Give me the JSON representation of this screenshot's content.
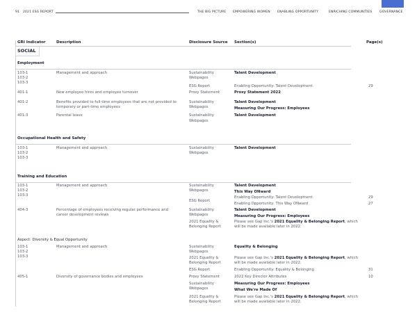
{
  "header": {
    "page_number": "91",
    "report_title": "2021 ESG REPORT",
    "nav": [
      "THE BIG PICTURE",
      "EMPOWERING WOMEN",
      "ENABLING OPPORTUNITY",
      "ENRICHING COMMUNITIES",
      "GOVERNANCE"
    ],
    "accent_color": "#4a6fd0"
  },
  "table": {
    "columns": [
      "GRI Indicator",
      "Description",
      "Disclosure Source",
      "Section(s)",
      "Page(s)"
    ],
    "category": "SOCIAL",
    "sections": {
      "employment": "Employment",
      "ohs": "Occupational Health and Safety",
      "training": "Training and Education",
      "diversity": "Aspect: Diversity & Equal Opportunity"
    },
    "text": {
      "ind_103_1": "103-1",
      "ind_103_2": "103-2",
      "ind_103_3": "103-3",
      "ind_401_1": "401-1",
      "ind_401_2": "401-2",
      "ind_401_3": "401-3",
      "ind_404_3": "404-3",
      "ind_405_1": "405-1",
      "mgmt": "Management and approach",
      "d401_1": "New employee hires and employee turnover",
      "d401_2a": "Benefits provided to full-time employees that are not provided to",
      "d401_2b": "temporary or part-time employees",
      "d401_3": "Parental leave",
      "d404_3a": "Percentage of employees receiving regular performance and",
      "d404_3b": "career development reviews",
      "d405_1": "Diversity of governance bodies and employees",
      "sust": "Sustainability",
      "web": "Webpages",
      "esg": "ESG Report",
      "proxy": "Proxy Statement",
      "eq1": "2021 Equality &",
      "eq2": "Belonging Report",
      "talent": "Talent Development",
      "eo_talent": "Enabling Opportunity: Talent Development",
      "proxy2022": "Proxy Statement 2022",
      "measuring": "Measuring Our Progress: Employees",
      "onward": "This Way ONward",
      "eo_onward": "Enabling Opportunity: This Way ONward",
      "please_pre": "Please see Gap Inc.'s ",
      "please_bold": "2021 Equality & Belonging Report",
      "please_post": ", which",
      "please_l2": "will be made available later in 2022.",
      "eqb": "Equality & Belonging",
      "eo_eqb": "Enabling Opportunity: Equality & Belonging",
      "key_dir": "2022 Key Director Attributes",
      "made_of": "What We're Made Of",
      "p29": "29",
      "p27": "27",
      "p31": "31",
      "p10": "10"
    }
  }
}
